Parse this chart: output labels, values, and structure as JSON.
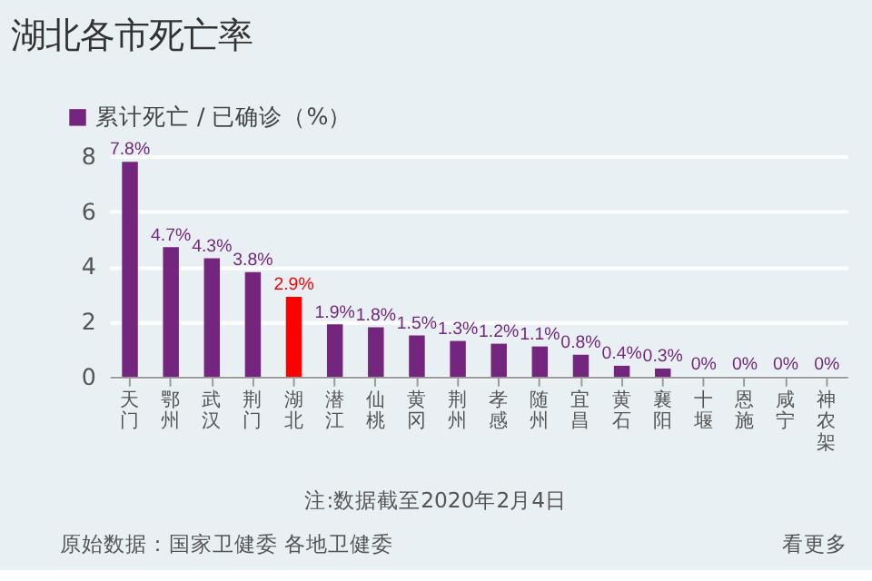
{
  "chart_data": {
    "type": "bar",
    "title": "湖北各市死亡率",
    "categories": [
      "天门",
      "鄂州",
      "武汉",
      "荆门",
      "湖北",
      "潜江",
      "仙桃",
      "黄冈",
      "荆州",
      "孝感",
      "随州",
      "宜昌",
      "黄石",
      "襄阳",
      "十堰",
      "恩施",
      "咸宁",
      "神农架"
    ],
    "series": [
      {
        "name": "累计死亡 / 已确诊（%）",
        "color": "#74267e",
        "values": [
          7.8,
          4.7,
          4.3,
          3.8,
          2.9,
          1.9,
          1.8,
          1.5,
          1.3,
          1.2,
          1.1,
          0.8,
          0.4,
          0.3,
          0,
          0,
          0,
          0
        ],
        "colors": [
          "#74267e",
          "#74267e",
          "#74267e",
          "#74267e",
          "#ff0000",
          "#74267e",
          "#74267e",
          "#74267e",
          "#74267e",
          "#74267e",
          "#74267e",
          "#74267e",
          "#74267e",
          "#74267e",
          "#74267e",
          "#74267e",
          "#74267e",
          "#74267e"
        ],
        "value_labels": [
          "7.8%",
          "4.7%",
          "4.3%",
          "3.8%",
          "2.9%",
          "1.9%",
          "1.8%",
          "1.5%",
          "1.3%",
          "1.2%",
          "1.1%",
          "0.8%",
          "0.4%",
          "0.3%",
          "0%",
          "0%",
          "0%",
          "0%"
        ]
      }
    ],
    "ylim": [
      0,
      8
    ],
    "yticks": [
      0,
      2,
      4,
      6,
      8
    ],
    "grid": "y",
    "legend": "top left",
    "annotations": [
      "注:数据截至2020年2月4日",
      "原始数据：国家卫健委 各地卫健委",
      "看更多"
    ]
  }
}
